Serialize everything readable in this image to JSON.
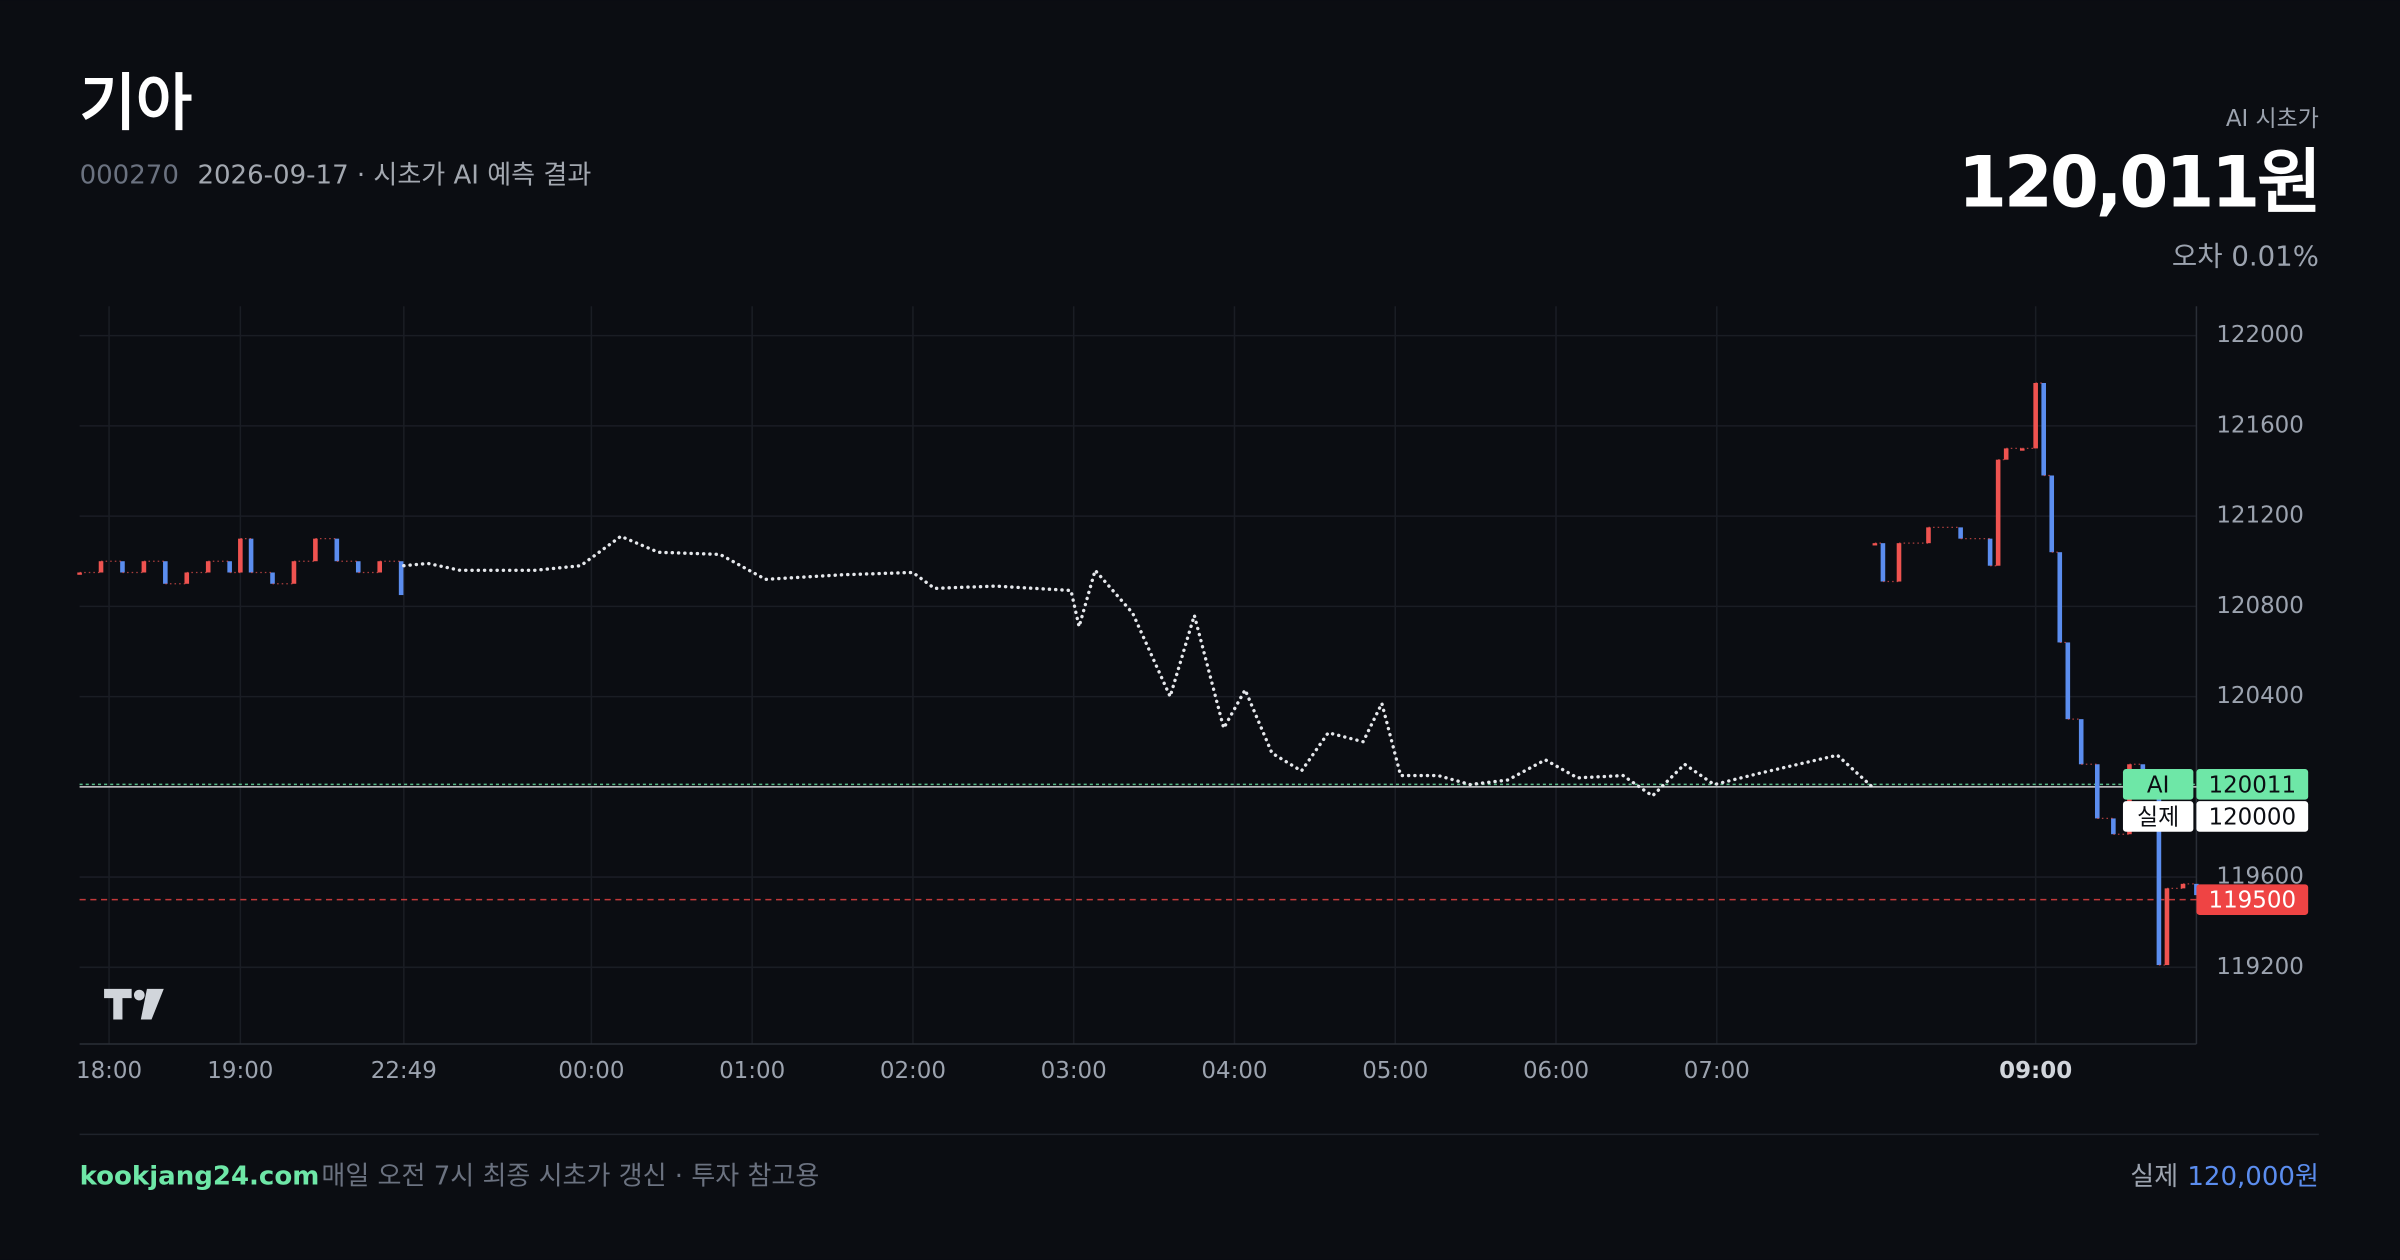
{
  "header": {
    "title": "기아",
    "code": "000270",
    "subtitle": "2026-09-17 · 시초가 AI 예측 결과",
    "forecast_label": "AI 시초가",
    "forecast_price": "120,011원",
    "error": "오차 0.01%"
  },
  "chart_data": {
    "type": "price",
    "xlim": [
      0,
      790
    ],
    "ylim": [
      118860,
      122130
    ],
    "yticks": [
      119200,
      119600,
      120000,
      120400,
      120800,
      121200,
      121600,
      122000
    ],
    "xticks": [
      {
        "value": 11,
        "label": "18:00"
      },
      {
        "value": 60,
        "label": "19:00"
      },
      {
        "value": 121,
        "label": "22:49"
      },
      {
        "value": 191,
        "label": "00:00"
      },
      {
        "value": 251,
        "label": "01:00"
      },
      {
        "value": 311,
        "label": "02:00"
      },
      {
        "value": 371,
        "label": "03:00"
      },
      {
        "value": 431,
        "label": "04:00"
      },
      {
        "value": 491,
        "label": "05:00"
      },
      {
        "value": 551,
        "label": "06:00"
      },
      {
        "value": 611,
        "label": "07:00"
      },
      {
        "value": 730,
        "label": "09:00"
      }
    ],
    "grid": true,
    "up_color": "#ef5350",
    "down_color": "#5b8def",
    "series": [
      {
        "style": "candles",
        "color": "#ef5350",
        "x": [
          0,
          8,
          16,
          24,
          32,
          40,
          48,
          56,
          60,
          64,
          72,
          80,
          88,
          96,
          104,
          112,
          120
        ],
        "values": [
          120950,
          121000,
          120950,
          121000,
          120900,
          120950,
          121000,
          120950,
          121100,
          120950,
          120900,
          121000,
          121100,
          121000,
          120950,
          121000,
          120850
        ]
      },
      {
        "style": "dotted",
        "color": "#e5e7eb",
        "x": [
          121,
          130,
          142,
          170,
          187,
          202,
          216,
          239,
          256,
          285,
          311,
          319,
          342,
          370,
          373,
          379,
          393,
          407,
          416,
          427,
          435,
          445,
          456,
          466,
          479,
          486,
          493,
          507,
          519,
          533,
          547,
          559,
          576,
          587,
          599,
          610,
          627,
          656,
          669
        ],
        "values": [
          120980,
          120990,
          120960,
          120960,
          120980,
          121110,
          121040,
          121030,
          120920,
          120940,
          120950,
          120880,
          120890,
          120870,
          120710,
          120960,
          120770,
          120400,
          120760,
          120260,
          120430,
          120150,
          120070,
          120240,
          120200,
          120370,
          120050,
          120050,
          120010,
          120030,
          120120,
          120040,
          120050,
          119960,
          120100,
          120010,
          120060,
          120140,
          120000
        ]
      },
      {
        "style": "candles",
        "color": "#ef5350",
        "x": [
          670,
          673,
          679,
          690,
          702,
          713,
          716,
          719,
          725,
          730,
          733,
          736,
          739,
          742,
          747,
          753,
          759,
          765,
          770,
          776,
          779,
          785,
          790
        ],
        "values": [
          121080,
          120910,
          121080,
          121150,
          121100,
          120980,
          121450,
          121500,
          121500,
          121790,
          121380,
          121040,
          120640,
          120300,
          120100,
          119860,
          119790,
          120100,
          119960,
          119210,
          119550,
          119570,
          119520
        ]
      }
    ],
    "reference_lines": [
      {
        "label": "AI",
        "value": 120011,
        "color": "#6ee7a7",
        "text_color": "#0b0d12"
      },
      {
        "label": "실제",
        "value": 120000,
        "color": "#ffffff",
        "text_color": "#0b0d12"
      },
      {
        "value": 119500,
        "color": "#ef4444",
        "text_color": "#ffffff"
      }
    ]
  },
  "footer": {
    "site": "kookjang24.com",
    "note": "매일 오전 7시 최종 시초가 갱신 · 투자 참고용",
    "actual_label": "실제",
    "actual_price": "120,000원"
  }
}
